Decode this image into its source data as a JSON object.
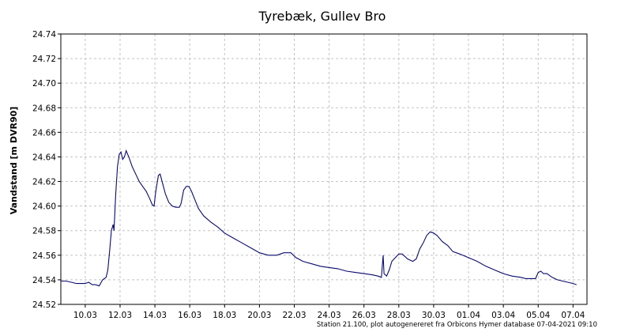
{
  "chart_data": {
    "type": "line",
    "title": "Tyrebæk, Gullev Bro",
    "ylabel": "Vandstand [m DVR90]",
    "xlabel": "",
    "footer": "Station 21.100, plot autogenereret fra Orbicons Hymer database 07-04-2021 09:10",
    "x_unit": "date (day of year 2021)",
    "xlim": [
      67.6,
      97.8
    ],
    "ylim": [
      24.52,
      24.74
    ],
    "grid": true,
    "line_color": "#0a0a6e",
    "x_ticks": [
      {
        "value": 69,
        "label": "10.03"
      },
      {
        "value": 71,
        "label": "12.03"
      },
      {
        "value": 73,
        "label": "14.03"
      },
      {
        "value": 75,
        "label": "16.03"
      },
      {
        "value": 77,
        "label": "18.03"
      },
      {
        "value": 79,
        "label": "20.03"
      },
      {
        "value": 81,
        "label": "22.03"
      },
      {
        "value": 83,
        "label": "24.03"
      },
      {
        "value": 85,
        "label": "26.03"
      },
      {
        "value": 87,
        "label": "28.03"
      },
      {
        "value": 89,
        "label": "30.03"
      },
      {
        "value": 91,
        "label": "01.04"
      },
      {
        "value": 93,
        "label": "03.04"
      },
      {
        "value": 95,
        "label": "05.04"
      },
      {
        "value": 97,
        "label": "07.04"
      }
    ],
    "y_ticks": [
      {
        "value": 24.52,
        "label": "24.52"
      },
      {
        "value": 24.54,
        "label": "24.54"
      },
      {
        "value": 24.56,
        "label": "24.56"
      },
      {
        "value": 24.58,
        "label": "24.58"
      },
      {
        "value": 24.6,
        "label": "24.60"
      },
      {
        "value": 24.62,
        "label": "24.62"
      },
      {
        "value": 24.64,
        "label": "24.64"
      },
      {
        "value": 24.66,
        "label": "24.66"
      },
      {
        "value": 24.68,
        "label": "24.68"
      },
      {
        "value": 24.7,
        "label": "24.70"
      },
      {
        "value": 24.72,
        "label": "24.72"
      },
      {
        "value": 24.74,
        "label": "24.74"
      }
    ],
    "series": [
      {
        "points": [
          [
            67.6,
            24.539
          ],
          [
            67.9,
            24.539
          ],
          [
            68.2,
            24.538
          ],
          [
            68.5,
            24.537
          ],
          [
            68.8,
            24.537
          ],
          [
            69.0,
            24.537
          ],
          [
            69.2,
            24.538
          ],
          [
            69.4,
            24.536
          ],
          [
            69.6,
            24.536
          ],
          [
            69.8,
            24.535
          ],
          [
            70.0,
            24.54
          ],
          [
            70.2,
            24.542
          ],
          [
            70.3,
            24.548
          ],
          [
            70.4,
            24.563
          ],
          [
            70.5,
            24.58
          ],
          [
            70.6,
            24.585
          ],
          [
            70.65,
            24.58
          ],
          [
            70.75,
            24.61
          ],
          [
            70.85,
            24.632
          ],
          [
            70.95,
            24.642
          ],
          [
            71.05,
            24.644
          ],
          [
            71.15,
            24.638
          ],
          [
            71.25,
            24.64
          ],
          [
            71.35,
            24.645
          ],
          [
            71.5,
            24.64
          ],
          [
            71.7,
            24.632
          ],
          [
            71.9,
            24.626
          ],
          [
            72.1,
            24.62
          ],
          [
            72.3,
            24.616
          ],
          [
            72.5,
            24.612
          ],
          [
            72.7,
            24.606
          ],
          [
            72.85,
            24.601
          ],
          [
            72.95,
            24.6
          ],
          [
            73.05,
            24.612
          ],
          [
            73.2,
            24.625
          ],
          [
            73.3,
            24.626
          ],
          [
            73.45,
            24.618
          ],
          [
            73.6,
            24.61
          ],
          [
            73.8,
            24.603
          ],
          [
            74.0,
            24.6
          ],
          [
            74.2,
            24.599
          ],
          [
            74.4,
            24.599
          ],
          [
            74.5,
            24.602
          ],
          [
            74.65,
            24.613
          ],
          [
            74.8,
            24.616
          ],
          [
            74.95,
            24.616
          ],
          [
            75.1,
            24.612
          ],
          [
            75.3,
            24.605
          ],
          [
            75.5,
            24.598
          ],
          [
            75.8,
            24.592
          ],
          [
            76.2,
            24.587
          ],
          [
            76.6,
            24.583
          ],
          [
            77.0,
            24.578
          ],
          [
            77.5,
            24.574
          ],
          [
            78.0,
            24.57
          ],
          [
            78.5,
            24.566
          ],
          [
            79.0,
            24.562
          ],
          [
            79.5,
            24.56
          ],
          [
            80.0,
            24.56
          ],
          [
            80.4,
            24.562
          ],
          [
            80.8,
            24.562
          ],
          [
            81.1,
            24.558
          ],
          [
            81.5,
            24.555
          ],
          [
            82.0,
            24.553
          ],
          [
            82.5,
            24.551
          ],
          [
            83.0,
            24.55
          ],
          [
            83.5,
            24.549
          ],
          [
            84.0,
            24.547
          ],
          [
            84.5,
            24.546
          ],
          [
            85.0,
            24.545
          ],
          [
            85.5,
            24.544
          ],
          [
            85.8,
            24.543
          ],
          [
            86.0,
            24.542
          ],
          [
            86.1,
            24.56
          ],
          [
            86.15,
            24.545
          ],
          [
            86.3,
            24.543
          ],
          [
            86.45,
            24.548
          ],
          [
            86.6,
            24.555
          ],
          [
            86.8,
            24.558
          ],
          [
            87.0,
            24.561
          ],
          [
            87.2,
            24.561
          ],
          [
            87.5,
            24.557
          ],
          [
            87.8,
            24.555
          ],
          [
            88.0,
            24.557
          ],
          [
            88.2,
            24.565
          ],
          [
            88.4,
            24.57
          ],
          [
            88.6,
            24.576
          ],
          [
            88.8,
            24.579
          ],
          [
            89.0,
            24.578
          ],
          [
            89.2,
            24.576
          ],
          [
            89.5,
            24.571
          ],
          [
            89.8,
            24.568
          ],
          [
            90.1,
            24.563
          ],
          [
            90.5,
            24.561
          ],
          [
            91.0,
            24.558
          ],
          [
            91.5,
            24.555
          ],
          [
            92.0,
            24.551
          ],
          [
            92.5,
            24.548
          ],
          [
            93.0,
            24.545
          ],
          [
            93.5,
            24.543
          ],
          [
            94.0,
            24.542
          ],
          [
            94.3,
            24.541
          ],
          [
            94.6,
            24.541
          ],
          [
            94.85,
            24.541
          ],
          [
            95.0,
            24.546
          ],
          [
            95.15,
            24.547
          ],
          [
            95.3,
            24.545
          ],
          [
            95.5,
            24.545
          ],
          [
            95.8,
            24.542
          ],
          [
            96.1,
            24.54
          ],
          [
            96.4,
            24.539
          ],
          [
            96.7,
            24.538
          ],
          [
            97.0,
            24.537
          ],
          [
            97.2,
            24.536
          ]
        ]
      }
    ]
  }
}
